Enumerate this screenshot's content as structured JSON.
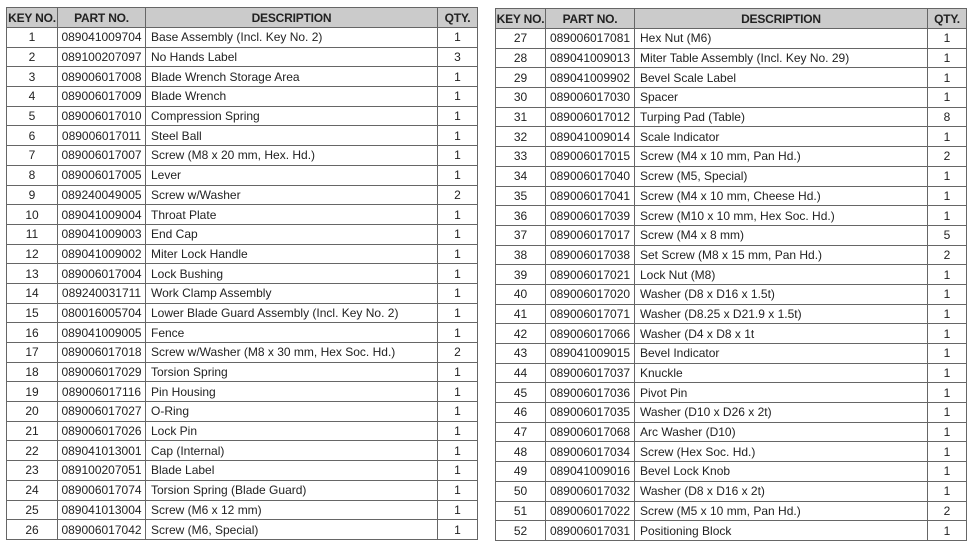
{
  "headers": {
    "key": "KEY NO.",
    "part": "PART NO.",
    "description": "DESCRIPTION",
    "qty": "QTY."
  },
  "colors": {
    "header_bg": "#cbcbcb",
    "border": "#666666"
  },
  "tables": [
    {
      "rows": [
        {
          "key": "1",
          "part": "089041009704",
          "description": "Base Assembly (Incl. Key No. 2)",
          "qty": "1"
        },
        {
          "key": "2",
          "part": "089100207097",
          "description": "No Hands Label",
          "qty": "3"
        },
        {
          "key": "3",
          "part": "089006017008",
          "description": "Blade Wrench Storage Area",
          "qty": "1"
        },
        {
          "key": "4",
          "part": "089006017009",
          "description": "Blade Wrench",
          "qty": "1"
        },
        {
          "key": "5",
          "part": "089006017010",
          "description": "Compression Spring",
          "qty": "1"
        },
        {
          "key": "6",
          "part": "089006017011",
          "description": "Steel Ball",
          "qty": "1"
        },
        {
          "key": "7",
          "part": "089006017007",
          "description": "Screw (M8 x 20 mm, Hex. Hd.)",
          "qty": "1"
        },
        {
          "key": "8",
          "part": "089006017005",
          "description": "Lever",
          "qty": "1"
        },
        {
          "key": "9",
          "part": "089240049005",
          "description": "Screw w/Washer",
          "qty": "2"
        },
        {
          "key": "10",
          "part": "089041009004",
          "description": "Throat Plate",
          "qty": "1"
        },
        {
          "key": "11",
          "part": "089041009003",
          "description": "End Cap",
          "qty": "1"
        },
        {
          "key": "12",
          "part": "089041009002",
          "description": "Miter Lock Handle",
          "qty": "1"
        },
        {
          "key": "13",
          "part": "089006017004",
          "description": "Lock Bushing",
          "qty": "1"
        },
        {
          "key": "14",
          "part": "089240031711",
          "description": "Work Clamp Assembly",
          "qty": "1"
        },
        {
          "key": "15",
          "part": "080016005704",
          "description": "Lower Blade Guard Assembly (Incl. Key No. 2)",
          "qty": "1"
        },
        {
          "key": "16",
          "part": "089041009005",
          "description": "Fence",
          "qty": "1"
        },
        {
          "key": "17",
          "part": "089006017018",
          "description": "Screw w/Washer (M8 x 30 mm, Hex Soc. Hd.)",
          "qty": "2"
        },
        {
          "key": "18",
          "part": "089006017029",
          "description": "Torsion Spring",
          "qty": "1"
        },
        {
          "key": "19",
          "part": "089006017116",
          "description": "Pin Housing",
          "qty": "1"
        },
        {
          "key": "20",
          "part": "089006017027",
          "description": "O-Ring",
          "qty": "1"
        },
        {
          "key": "21",
          "part": "089006017026",
          "description": "Lock Pin",
          "qty": "1"
        },
        {
          "key": "22",
          "part": "089041013001",
          "description": "Cap (Internal)",
          "qty": "1"
        },
        {
          "key": "23",
          "part": "089100207051",
          "description": "Blade Label",
          "qty": "1"
        },
        {
          "key": "24",
          "part": "089006017074",
          "description": "Torsion Spring (Blade Guard)",
          "qty": "1"
        },
        {
          "key": "25",
          "part": "089041013004",
          "description": "Screw (M6 x 12 mm)",
          "qty": "1"
        },
        {
          "key": "26",
          "part": "089006017042",
          "description": "Screw (M6, Special)",
          "qty": "1"
        }
      ]
    },
    {
      "rows": [
        {
          "key": "27",
          "part": "089006017081",
          "description": "Hex Nut (M6)",
          "qty": "1"
        },
        {
          "key": "28",
          "part": "089041009013",
          "description": "Miter Table Assembly (Incl. Key No. 29)",
          "qty": "1"
        },
        {
          "key": "29",
          "part": "089041009902",
          "description": "Bevel Scale Label",
          "qty": "1"
        },
        {
          "key": "30",
          "part": "089006017030",
          "description": "Spacer",
          "qty": "1"
        },
        {
          "key": "31",
          "part": "089006017012",
          "description": "Turping Pad (Table)",
          "qty": "8"
        },
        {
          "key": "32",
          "part": "089041009014",
          "description": "Scale Indicator",
          "qty": "1"
        },
        {
          "key": "33",
          "part": "089006017015",
          "description": "Screw (M4 x 10 mm, Pan Hd.)",
          "qty": "2"
        },
        {
          "key": "34",
          "part": "089006017040",
          "description": "Screw (M5, Special)",
          "qty": "1"
        },
        {
          "key": "35",
          "part": "089006017041",
          "description": "Screw (M4 x 10 mm, Cheese Hd.)",
          "qty": "1"
        },
        {
          "key": "36",
          "part": "089006017039",
          "description": "Screw (M10 x 10 mm, Hex Soc. Hd.)",
          "qty": "1"
        },
        {
          "key": "37",
          "part": "089006017017",
          "description": "Screw (M4 x 8 mm)",
          "qty": "5"
        },
        {
          "key": "38",
          "part": "089006017038",
          "description": "Set Screw (M8 x 15 mm, Pan Hd.)",
          "qty": "2"
        },
        {
          "key": "39",
          "part": "089006017021",
          "description": "Lock Nut (M8)",
          "qty": "1"
        },
        {
          "key": "40",
          "part": "089006017020",
          "description": "Washer (D8 x D16 x 1.5t)",
          "qty": "1"
        },
        {
          "key": "41",
          "part": "089006017071",
          "description": "Washer (D8.25 x D21.9 x 1.5t)",
          "qty": "1"
        },
        {
          "key": "42",
          "part": "089006017066",
          "description": "Washer (D4 x D8 x 1t",
          "qty": "1"
        },
        {
          "key": "43",
          "part": "089041009015",
          "description": "Bevel Indicator",
          "qty": "1"
        },
        {
          "key": "44",
          "part": "089006017037",
          "description": "Knuckle",
          "qty": "1"
        },
        {
          "key": "45",
          "part": "089006017036",
          "description": "Pivot Pin",
          "qty": "1"
        },
        {
          "key": "46",
          "part": "089006017035",
          "description": "Washer (D10 x D26 x 2t)",
          "qty": "1"
        },
        {
          "key": "47",
          "part": "089006017068",
          "description": "Arc Washer (D10)",
          "qty": "1"
        },
        {
          "key": "48",
          "part": "089006017034",
          "description": "Screw (Hex Soc. Hd.)",
          "qty": "1"
        },
        {
          "key": "49",
          "part": "089041009016",
          "description": "Bevel Lock Knob",
          "qty": "1"
        },
        {
          "key": "50",
          "part": "089006017032",
          "description": "Washer (D8 x D16 x 2t)",
          "qty": "1"
        },
        {
          "key": "51",
          "part": "089006017022",
          "description": "Screw (M5 x 10 mm, Pan Hd.)",
          "qty": "2"
        },
        {
          "key": "52",
          "part": "089006017031",
          "description": "Positioning Block",
          "qty": "1"
        }
      ]
    }
  ]
}
